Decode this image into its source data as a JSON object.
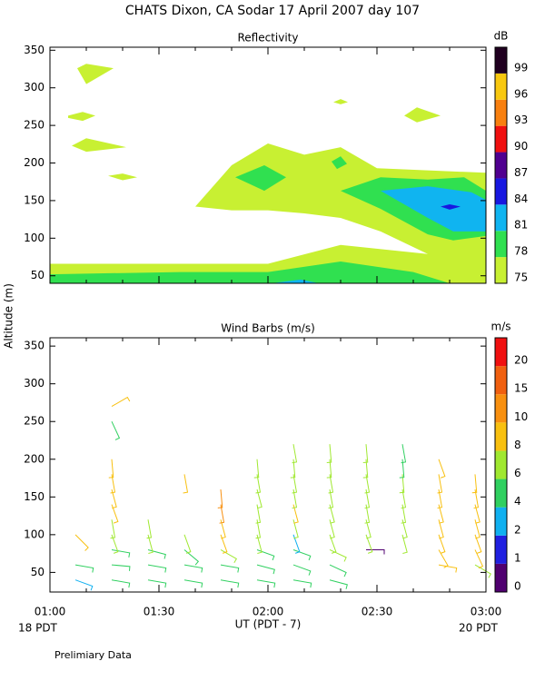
{
  "title": "CHATS Dixon, CA  Sodar  17 April 2007  day 107",
  "ylabel": "Altitude (m)",
  "xlabel": "UT  (PDT - 7)",
  "x_start_label": "18 PDT",
  "x_end_label": "20 PDT",
  "footnote": "Prelimiary Data",
  "chart_data": [
    {
      "type": "contour",
      "title": "Reflectivity",
      "colorbar_label": "dB",
      "colorbar_ticks": [
        75,
        78,
        81,
        84,
        87,
        90,
        93,
        96,
        99
      ],
      "colors": [
        "#c8f032",
        "#30e050",
        "#10b4f0",
        "#1818e0",
        "#500090",
        "#f01010",
        "#f88010",
        "#f8c810",
        "#200020"
      ],
      "xlim": [
        60,
        180
      ],
      "xticks": [
        {
          "value": 60,
          "label": "01:00"
        },
        {
          "value": 90,
          "label": "01:30"
        },
        {
          "value": 120,
          "label": "02:00"
        },
        {
          "value": 150,
          "label": "02:30"
        },
        {
          "value": 180,
          "label": "03:00"
        }
      ],
      "minor_xticks": [
        70,
        80,
        100,
        110,
        130,
        140,
        160,
        170
      ],
      "ylim": [
        40,
        354
      ],
      "yticks": [
        50,
        100,
        150,
        200,
        250,
        300,
        350
      ],
      "polygons": [
        {
          "level": 75,
          "points": [
            [
              60,
              66
            ],
            [
              120,
              66
            ],
            [
              140,
              91
            ],
            [
              164,
              79
            ],
            [
              151,
              109
            ],
            [
              140,
              127
            ],
            [
              130,
              133
            ],
            [
              120,
              137
            ],
            [
              110,
              137
            ],
            [
              100,
              142
            ],
            [
              110,
              197
            ],
            [
              120,
              226
            ],
            [
              130,
              211
            ],
            [
              140,
              221
            ],
            [
              150,
              193
            ],
            [
              180,
              187
            ],
            [
              180,
              40
            ],
            [
              60,
              40
            ]
          ]
        },
        {
          "level": 75,
          "points": [
            [
              67.5,
              326
            ],
            [
              70,
              332
            ],
            [
              77.5,
              326
            ],
            [
              70,
              305
            ]
          ]
        },
        {
          "level": 75,
          "points": [
            [
              65,
              263
            ],
            [
              69,
              268
            ],
            [
              72.5,
              263
            ],
            [
              69,
              256
            ],
            [
              65,
              260
            ]
          ]
        },
        {
          "level": 75,
          "points": [
            [
              66,
              223
            ],
            [
              70,
              233
            ],
            [
              81,
              221
            ],
            [
              70,
              215
            ]
          ]
        },
        {
          "level": 75,
          "points": [
            [
              76,
              183
            ],
            [
              80,
              186
            ],
            [
              84,
              181
            ],
            [
              80,
              177
            ]
          ]
        },
        {
          "level": 75,
          "points": [
            [
              138,
              281
            ],
            [
              140,
              285
            ],
            [
              142,
              281
            ],
            [
              140,
              278
            ]
          ]
        },
        {
          "level": 75,
          "points": [
            [
              157.5,
              263
            ],
            [
              161,
              274
            ],
            [
              167.5,
              263
            ],
            [
              161,
              254
            ]
          ]
        },
        {
          "level": 78,
          "points": [
            [
              60,
              52
            ],
            [
              96,
              55
            ],
            [
              120,
              55
            ],
            [
              140,
              69
            ],
            [
              160,
              55
            ],
            [
              170,
              40
            ],
            [
              60,
              40
            ]
          ]
        },
        {
          "level": 78,
          "points": [
            [
              111,
              181
            ],
            [
              119,
              197
            ],
            [
              125,
              181
            ],
            [
              119,
              163
            ]
          ]
        },
        {
          "level": 78,
          "points": [
            [
              137.5,
              202
            ],
            [
              140,
              209
            ],
            [
              141.75,
              199
            ],
            [
              139,
              192
            ]
          ]
        },
        {
          "level": 78,
          "points": [
            [
              140,
              163
            ],
            [
              151,
              181
            ],
            [
              164,
              178
            ],
            [
              174,
              181
            ],
            [
              180,
              163
            ],
            [
              180,
              103
            ],
            [
              171,
              97
            ],
            [
              164,
              105
            ],
            [
              151,
              139
            ]
          ]
        },
        {
          "level": 81,
          "points": [
            [
              151,
              163
            ],
            [
              164,
              169
            ],
            [
              176,
              161
            ],
            [
              180,
              151
            ],
            [
              180,
              109
            ],
            [
              171,
              109
            ],
            [
              164,
              127
            ]
          ]
        },
        {
          "level": 81,
          "points": [
            [
              121,
              40
            ],
            [
              129,
              45
            ],
            [
              134,
              40
            ]
          ]
        },
        {
          "level": 84,
          "points": [
            [
              167.5,
              142
            ],
            [
              170,
              145
            ],
            [
              173,
              142
            ],
            [
              170,
              138
            ]
          ]
        }
      ]
    },
    {
      "type": "barbs",
      "title": "Wind Barbs (m/s)",
      "colorbar_label": "m/s",
      "colorbar_ticks": [
        0,
        1,
        2,
        4,
        6,
        8,
        10,
        15,
        20
      ],
      "colors": [
        "#500070",
        "#2020e0",
        "#10b0f0",
        "#30d060",
        "#a0e830",
        "#f8c010",
        "#f89010",
        "#f06010",
        "#f01010"
      ],
      "xlim": [
        60,
        180
      ],
      "xticks": [
        {
          "value": 60,
          "label": "01:00"
        },
        {
          "value": 90,
          "label": "01:30"
        },
        {
          "value": 120,
          "label": "02:00"
        },
        {
          "value": 150,
          "label": "02:30"
        },
        {
          "value": 180,
          "label": "03:00"
        }
      ],
      "minor_xticks": [
        70,
        80,
        100,
        110,
        130,
        140,
        160,
        170
      ],
      "ylim": [
        24,
        361
      ],
      "yticks": [
        50,
        100,
        150,
        200,
        250,
        300,
        350
      ],
      "barbs": [
        [
          67,
          40,
          3,
          110
        ],
        [
          67,
          60,
          4,
          100
        ],
        [
          67,
          100,
          8,
          135
        ],
        [
          77,
          40,
          4,
          100
        ],
        [
          77,
          60,
          4,
          95
        ],
        [
          77,
          80,
          5,
          100
        ],
        [
          77,
          100,
          6,
          160
        ],
        [
          77,
          120,
          6,
          170
        ],
        [
          77,
          140,
          8,
          160
        ],
        [
          77,
          160,
          9,
          165
        ],
        [
          77,
          180,
          9,
          170
        ],
        [
          77,
          200,
          9,
          175
        ],
        [
          77,
          250,
          5,
          155
        ],
        [
          77,
          270,
          9,
          60
        ],
        [
          87,
          40,
          4,
          100
        ],
        [
          87,
          60,
          4,
          100
        ],
        [
          87,
          80,
          4,
          105
        ],
        [
          87,
          100,
          6,
          165
        ],
        [
          87,
          120,
          6,
          170
        ],
        [
          97,
          40,
          4,
          100
        ],
        [
          97,
          60,
          4,
          100
        ],
        [
          97,
          80,
          5,
          130
        ],
        [
          97,
          100,
          7,
          160
        ],
        [
          97,
          180,
          9,
          170
        ],
        [
          107,
          40,
          4,
          100
        ],
        [
          107,
          60,
          4,
          100
        ],
        [
          107,
          80,
          6,
          120
        ],
        [
          107,
          100,
          9,
          160
        ],
        [
          107,
          120,
          9,
          165
        ],
        [
          107,
          140,
          10,
          170
        ],
        [
          107,
          160,
          10,
          175
        ],
        [
          117,
          40,
          4,
          100
        ],
        [
          117,
          60,
          4,
          105
        ],
        [
          117,
          80,
          5,
          110
        ],
        [
          117,
          100,
          6,
          165
        ],
        [
          117,
          120,
          7,
          170
        ],
        [
          117,
          140,
          7,
          170
        ],
        [
          117,
          160,
          6,
          165
        ],
        [
          117,
          180,
          6,
          170
        ],
        [
          117,
          200,
          6,
          175
        ],
        [
          127,
          40,
          4,
          100
        ],
        [
          127,
          60,
          4,
          110
        ],
        [
          127,
          80,
          5,
          110
        ],
        [
          127,
          100,
          3,
          160
        ],
        [
          127,
          120,
          7,
          165
        ],
        [
          127,
          140,
          8,
          165
        ],
        [
          127,
          160,
          7,
          170
        ],
        [
          127,
          180,
          6,
          170
        ],
        [
          127,
          200,
          6,
          175
        ],
        [
          127,
          220,
          7,
          170
        ],
        [
          137,
          40,
          5,
          105
        ],
        [
          137,
          60,
          5,
          115
        ],
        [
          137,
          80,
          6,
          115
        ],
        [
          137,
          100,
          6,
          160
        ],
        [
          137,
          120,
          7,
          165
        ],
        [
          137,
          140,
          7,
          165
        ],
        [
          137,
          160,
          7,
          170
        ],
        [
          137,
          180,
          7,
          170
        ],
        [
          137,
          200,
          7,
          175
        ],
        [
          137,
          220,
          7,
          175
        ],
        [
          147,
          80,
          0.5,
          90
        ],
        [
          147,
          100,
          6,
          160
        ],
        [
          147,
          120,
          6,
          165
        ],
        [
          147,
          140,
          6,
          170
        ],
        [
          147,
          160,
          6,
          170
        ],
        [
          147,
          180,
          6,
          170
        ],
        [
          147,
          200,
          6,
          175
        ],
        [
          147,
          220,
          6,
          175
        ],
        [
          157,
          100,
          6,
          165
        ],
        [
          157,
          120,
          6,
          165
        ],
        [
          157,
          140,
          6,
          170
        ],
        [
          157,
          160,
          6,
          170
        ],
        [
          157,
          180,
          6,
          175
        ],
        [
          157,
          200,
          5,
          175
        ],
        [
          157,
          220,
          4,
          170
        ],
        [
          167,
          60,
          9,
          100
        ],
        [
          167,
          80,
          8,
          150
        ],
        [
          167,
          100,
          9,
          160
        ],
        [
          167,
          120,
          9,
          165
        ],
        [
          167,
          140,
          9,
          165
        ],
        [
          167,
          160,
          9,
          170
        ],
        [
          167,
          180,
          9,
          170
        ],
        [
          167,
          200,
          9,
          160
        ],
        [
          177,
          60,
          6,
          120
        ],
        [
          177,
          80,
          9,
          155
        ],
        [
          177,
          100,
          9,
          160
        ],
        [
          177,
          120,
          9,
          165
        ],
        [
          177,
          140,
          9,
          165
        ],
        [
          177,
          160,
          9,
          170
        ],
        [
          177,
          180,
          9,
          175
        ]
      ]
    }
  ]
}
